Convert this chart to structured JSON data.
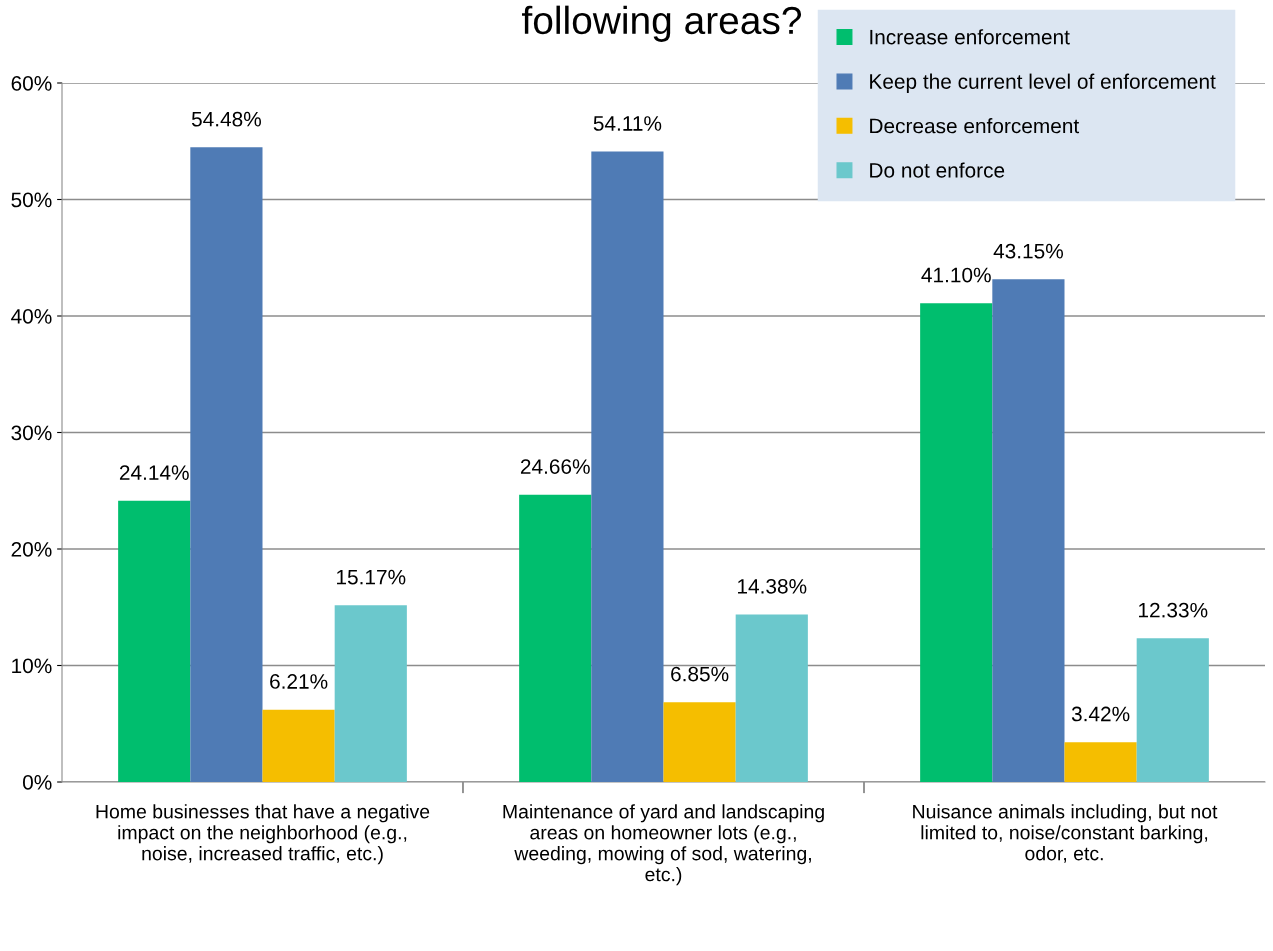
{
  "chart_data": {
    "type": "bar",
    "title": "following areas?",
    "categories": [
      "Home businesses that have a negative impact on the neighborhood (e.g., noise, increased traffic, etc.)",
      "Maintenance of yard and landscaping areas on homeowner lots (e.g., weeding, mowing of sod, watering, etc.)",
      "Nuisance animals including, but not limited to, noise/constant barking, odor, etc."
    ],
    "series": [
      {
        "name": "Increase enforcement",
        "color": "#00be6e",
        "values": [
          24.14,
          24.66,
          41.1
        ],
        "value_labels": [
          "24.14%",
          "24.66%",
          "41.10%"
        ]
      },
      {
        "name": "Keep the current level of enforcement",
        "color": "#4f7bb5",
        "values": [
          54.48,
          54.11,
          43.15
        ],
        "value_labels": [
          "54.48%",
          "54.11%",
          "43.15%"
        ]
      },
      {
        "name": "Decrease enforcement",
        "color": "#f5be00",
        "values": [
          6.21,
          6.85,
          3.42
        ],
        "value_labels": [
          "6.21%",
          "6.85%",
          "3.42%"
        ]
      },
      {
        "name": "Do not enforce",
        "color": "#6bc8cc",
        "values": [
          15.17,
          14.38,
          12.33
        ],
        "value_labels": [
          "15.17%",
          "14.38%",
          "12.33%"
        ]
      }
    ],
    "ylim": [
      0,
      60
    ],
    "yticks": [
      {
        "value": 0,
        "label": "0%"
      },
      {
        "value": 10,
        "label": "10%"
      },
      {
        "value": 20,
        "label": "20%"
      },
      {
        "value": 30,
        "label": "30%"
      },
      {
        "value": 40,
        "label": "40%"
      },
      {
        "value": 50,
        "label": "50%"
      },
      {
        "value": 60,
        "label": "60%"
      }
    ],
    "grid": "y",
    "legend": "top right"
  }
}
